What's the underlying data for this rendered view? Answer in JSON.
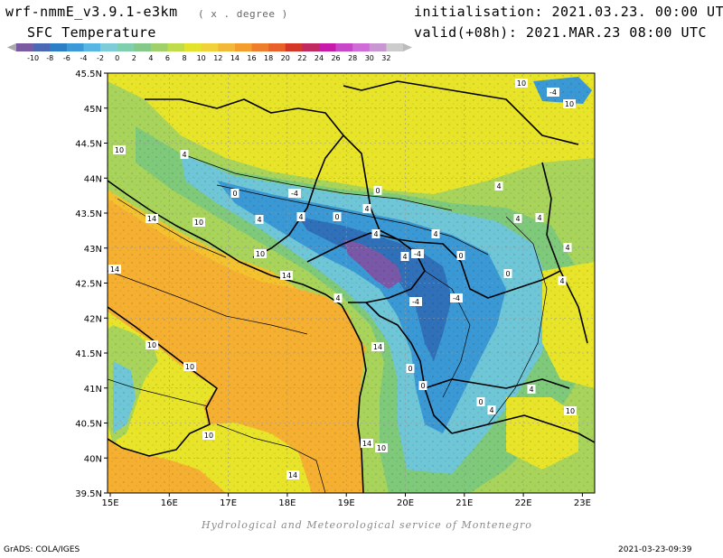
{
  "header": {
    "model": "wrf-nmmE_v3.9.1-e3km",
    "units": "( x . degree )",
    "field_title": "SFC Temperature",
    "init": "initialisation: 2021.03.23. 00:00 UTC",
    "valid": "valid(+08h): 2021.MAR.23 08:00 UTC"
  },
  "colorbar": {
    "labels": [
      "-10",
      "-8",
      "-6",
      "-4",
      "-2",
      "0",
      "2",
      "4",
      "6",
      "8",
      "10",
      "12",
      "14",
      "16",
      "18",
      "20",
      "22",
      "24",
      "26",
      "28",
      "30",
      "32"
    ],
    "colors": [
      "#7a5aa0",
      "#4a68b4",
      "#2c7fc4",
      "#3a99d6",
      "#58b7e2",
      "#7dccd8",
      "#7fcfae",
      "#85c98a",
      "#9fd06a",
      "#bfdd4a",
      "#e3e32e",
      "#f2d23a",
      "#f2b83a",
      "#f39e2c",
      "#ef7e2c",
      "#e8602a",
      "#d43628",
      "#c02a60",
      "#c81aa8",
      "#c846c8",
      "#d06cd8",
      "#c896d0",
      "#cccccc"
    ],
    "min_color": "#aaaaaa",
    "max_color": "#bbbbbb"
  },
  "map": {
    "lon_ticks": [
      "15E",
      "16E",
      "17E",
      "18E",
      "19E",
      "20E",
      "21E",
      "22E",
      "23E"
    ],
    "lat_ticks": [
      "45.5N",
      "45N",
      "44.5N",
      "44N",
      "43.5N",
      "43N",
      "42.5N",
      "42N",
      "41.5N",
      "41N",
      "40.5N",
      "40N",
      "39.5N"
    ],
    "contour_labels": [
      "-4",
      "-4",
      "-4",
      "-4",
      "-4",
      "0",
      "0",
      "0",
      "0",
      "0",
      "0",
      "0",
      "0",
      "4",
      "4",
      "4",
      "4",
      "4",
      "4",
      "4",
      "4",
      "4",
      "4",
      "4",
      "4",
      "4",
      "4",
      "4",
      "10",
      "10",
      "10",
      "10",
      "10",
      "10",
      "10",
      "10",
      "10",
      "10",
      "14",
      "14",
      "14",
      "14",
      "14",
      "14"
    ],
    "colors": {
      "sea": "#f5b032",
      "coast_sea": "#f3c22e",
      "lowland": "#e8e42a",
      "hills": "#a8d45c",
      "mountains_green": "#7ec97a",
      "mountains_cyan": "#6ec6d6",
      "mountains_blue": "#3a98d4",
      "peaks": "#2f70b8",
      "summits": "#7a58a8",
      "border": "#000000"
    }
  },
  "footer": {
    "credit": "Hydrological and Meteorological service of Montenegro",
    "grads": "GrADS: COLA/IGES",
    "timestamp": "2021-03-23-09:39"
  }
}
